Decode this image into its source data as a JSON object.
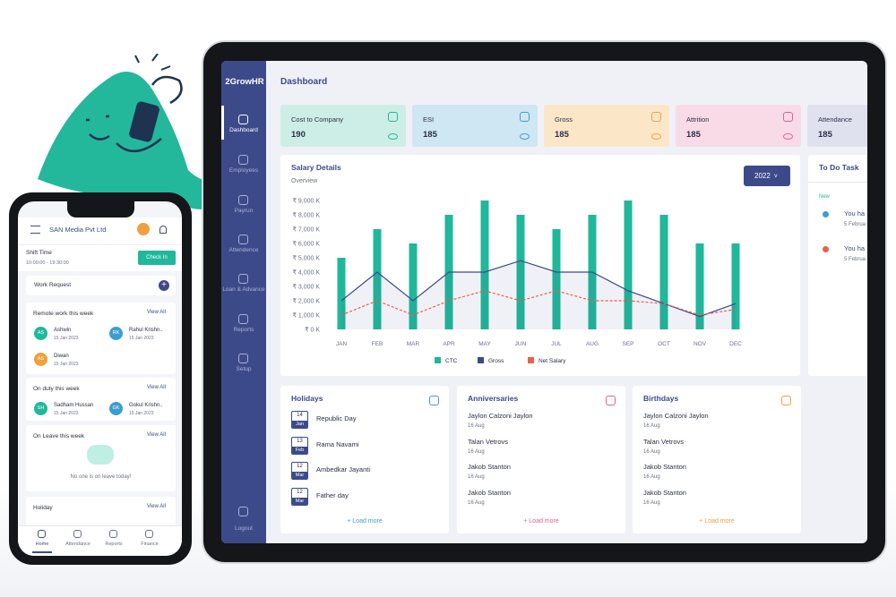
{
  "phone": {
    "company": "SAN Media Pvt Ltd",
    "shift_label": "Shift Time",
    "shift_time": "10:00:00 - 19:30:00",
    "check_in": "Check In",
    "work_request": "Work Request",
    "sections": [
      {
        "title": "Remote work this week",
        "link": "View All",
        "people": [
          {
            "initials": "AS",
            "name": "Ashwin",
            "date": "15 Jan 2023"
          },
          {
            "initials": "RK",
            "name": "Rahul Krishn..",
            "date": "15 Jan 2023"
          },
          {
            "initials": "AS",
            "name": "Diwan",
            "date": "15 Jan 2023"
          }
        ]
      },
      {
        "title": "On duty this week",
        "link": "View All",
        "people": [
          {
            "initials": "SH",
            "name": "Sadham Hussan",
            "date": "15 Jan 2023"
          },
          {
            "initials": "GK",
            "name": "Gokul Krishn..",
            "date": "15 Jan 2023"
          }
        ]
      },
      {
        "title": "On Leave this week",
        "link": "View All",
        "empty": "No one is on leave today!"
      },
      {
        "title": "Holiday",
        "link": "View All"
      }
    ],
    "nav": [
      "Home",
      "Attendance",
      "Reports",
      "Finance"
    ]
  },
  "app": {
    "logo": "2GrowHR",
    "sidebar": [
      "Dashboard",
      "Employees",
      "Payrun",
      "Attendence",
      "Loan & Advance",
      "Reports",
      "Setup"
    ],
    "logout": "Logout",
    "page_title": "Dashboard",
    "cards": [
      {
        "label": "Cost to Company",
        "value": 190
      },
      {
        "label": "ESI",
        "value": 185
      },
      {
        "label": "Gross",
        "value": 185
      },
      {
        "label": "Attrition",
        "value": 185
      },
      {
        "label": "Attendance",
        "value": 185
      }
    ],
    "salary": {
      "title": "Salary Details",
      "subtitle": "Overview",
      "year": "2022"
    },
    "todo": {
      "title": "To Do Task",
      "badge": "New",
      "items": [
        {
          "text": "You ha",
          "date": "5 Februa"
        },
        {
          "text": "You ha",
          "date": "5 Februa"
        }
      ]
    },
    "panels": [
      {
        "title": "Holidays",
        "items": [
          {
            "day": "14",
            "month": "Jan",
            "name": "Republic Day"
          },
          {
            "day": "13",
            "month": "Feb",
            "name": "Rama Navami"
          },
          {
            "day": "12",
            "month": "Mar",
            "name": "Ambedkar Jayanti"
          },
          {
            "day": "12",
            "month": "Mar",
            "name": "Father day"
          }
        ],
        "more": "+ Load more"
      },
      {
        "title": "Anniversaries",
        "items": [
          {
            "name": "Jaylon Calzoni Jaylon",
            "date": "16 Aug"
          },
          {
            "name": "Talan Vetrovs",
            "date": "16 Aug"
          },
          {
            "name": "Jakob Stanton",
            "date": "16 Aug"
          },
          {
            "name": "Jakob Stanton",
            "date": "16 Aug"
          }
        ],
        "more": "+ Load more"
      },
      {
        "title": "Birthdays",
        "items": [
          {
            "name": "Jaylon Calzoni Jaylon",
            "date": "16 Aug"
          },
          {
            "name": "Talan Vetrovs",
            "date": "16 Aug"
          },
          {
            "name": "Jakob Stanton",
            "date": "16 Aug"
          },
          {
            "name": "Jakob Stanton",
            "date": "16 Aug"
          }
        ],
        "more": "+ Load more"
      }
    ]
  },
  "chart_data": {
    "type": "bar",
    "categories": [
      "JAN",
      "FEB",
      "MAR",
      "APR",
      "MAY",
      "JUN",
      "JUL",
      "AUG",
      "SEP",
      "OCT",
      "NOV",
      "DEC"
    ],
    "series": [
      {
        "name": "CTC",
        "color": "#1fb89a",
        "type": "bar",
        "values": [
          5000,
          7000,
          6000,
          8000,
          9000,
          8000,
          7000,
          8000,
          9000,
          8000,
          6000,
          6000
        ]
      },
      {
        "name": "Gross",
        "color": "#3d4a8a",
        "type": "line",
        "area": true,
        "values": [
          2000,
          4000,
          2000,
          4000,
          4000,
          4800,
          4000,
          4000,
          2700,
          1800,
          900,
          1800
        ]
      },
      {
        "name": "Net Salary",
        "color": "#e8604c",
        "type": "line",
        "dashed": true,
        "values": [
          1000,
          2000,
          1000,
          2000,
          2700,
          2000,
          2700,
          2000,
          2000,
          1800,
          1000,
          1400
        ]
      }
    ],
    "ylim": [
      0,
      9000
    ],
    "yticks": [
      {
        "value": 0,
        "label": "₹ 0 K"
      },
      {
        "value": 1000,
        "label": "₹ 1,000 K"
      },
      {
        "value": 2000,
        "label": "₹ 2,000 K"
      },
      {
        "value": 3000,
        "label": "₹ 3,000 K"
      },
      {
        "value": 4000,
        "label": "₹ 4,000 K"
      },
      {
        "value": 5000,
        "label": "₹ 5,000 K"
      },
      {
        "value": 6000,
        "label": "₹ 6,000 K"
      },
      {
        "value": 7000,
        "label": "₹ 7,000 K"
      },
      {
        "value": 8000,
        "label": "₹ 8,000 K"
      },
      {
        "value": 9000,
        "label": "₹ 9,000 K"
      }
    ],
    "grid": false
  }
}
